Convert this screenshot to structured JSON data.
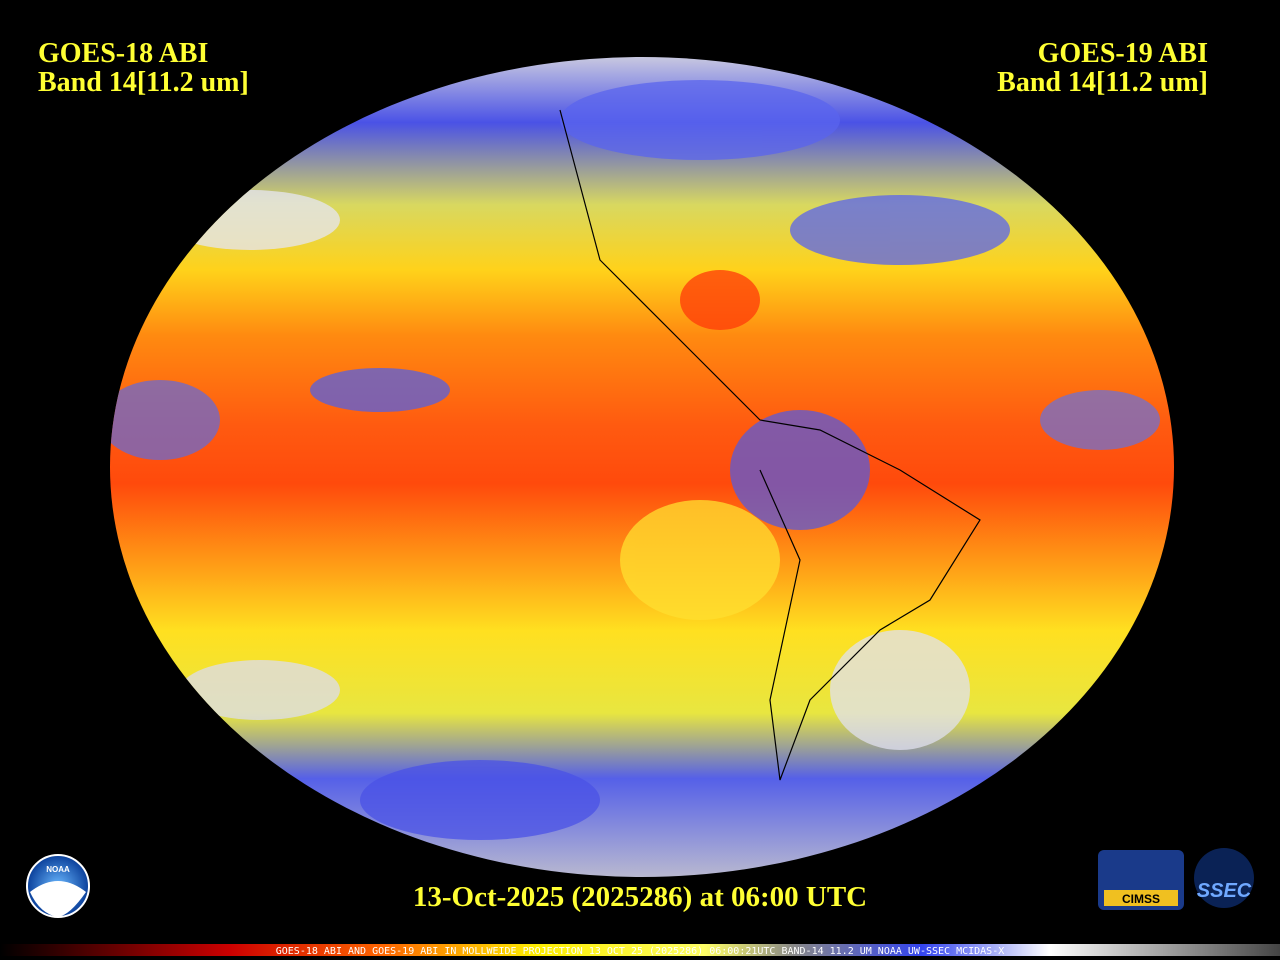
{
  "header": {
    "left": {
      "satellite": "GOES-18 ABI",
      "band": "Band 14[11.2 um]"
    },
    "right": {
      "satellite": "GOES-19 ABI",
      "band": "Band 14[11.2 um]"
    }
  },
  "footer": {
    "timestamp": "13-Oct-2025 (2025286) at 06:00 UTC"
  },
  "colorbar": {
    "caption": "GOES-18 ABI AND GOES-19 ABI IN MOLLWEIDE PROJECTION 13 OCT 25 (2025286) 06:00:21UTC BAND-14 11.2 UM NOAA UW-SSEC MCIDAS-X"
  },
  "logos": {
    "noaa": "NOAA",
    "cimss": "CIMSS",
    "ssec": "SSEC"
  }
}
